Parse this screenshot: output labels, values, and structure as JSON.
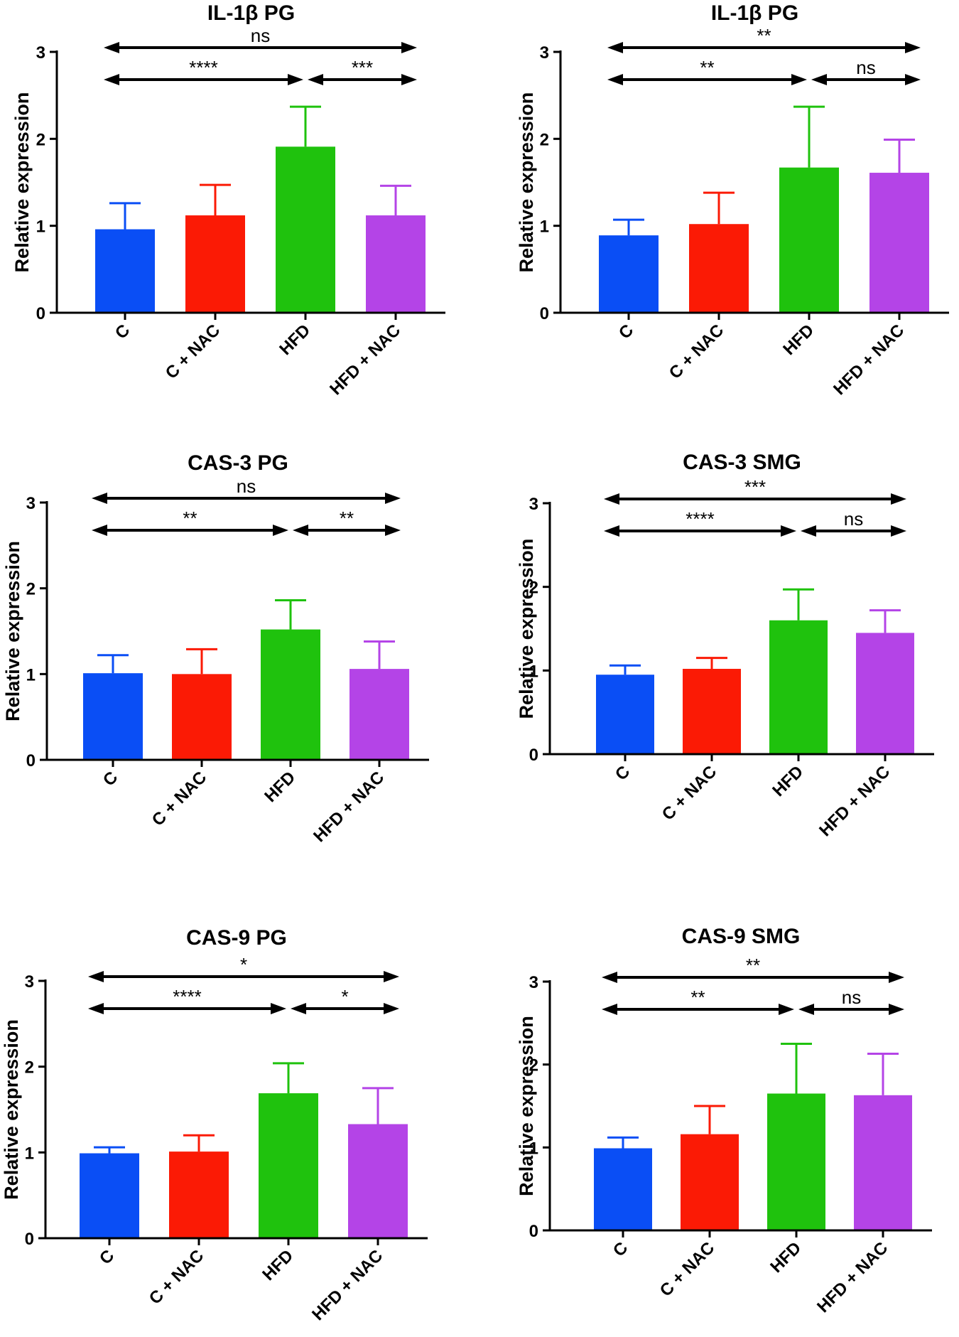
{
  "colors": {
    "C": "#0a4ef5",
    "C + NAC": "#fb1a05",
    "HFD": "#1fc20d",
    "HFD + NAC": "#b444e7",
    "axis": "#000000"
  },
  "chart_data": [
    {
      "type": "bar",
      "title": "IL-1β PG",
      "xlabel": "",
      "ylabel": "Relative expression",
      "ylim": [
        0,
        3
      ],
      "yticks": [
        0,
        1,
        2,
        3
      ],
      "categories": [
        "C",
        "C + NAC",
        "HFD",
        "HFD + NAC"
      ],
      "values": [
        0.96,
        1.12,
        1.91,
        1.12
      ],
      "errors": [
        0.3,
        0.35,
        0.46,
        0.34
      ],
      "comparisons": [
        {
          "from": "C",
          "to": "HFD + NAC",
          "label": "ns",
          "level": "top"
        },
        {
          "from": "C",
          "to": "HFD",
          "label": "****",
          "level": "lower"
        },
        {
          "from": "HFD",
          "to": "HFD + NAC",
          "label": "***",
          "level": "lower"
        }
      ]
    },
    {
      "type": "bar",
      "title": "IL-1β PG",
      "xlabel": "",
      "ylabel": "Relative expression",
      "ylim": [
        0,
        3
      ],
      "yticks": [
        0,
        1,
        2,
        3
      ],
      "categories": [
        "C",
        "C + NAC",
        "HFD",
        "HFD + NAC"
      ],
      "values": [
        0.89,
        1.02,
        1.67,
        1.61
      ],
      "errors": [
        0.18,
        0.36,
        0.7,
        0.38
      ],
      "comparisons": [
        {
          "from": "C",
          "to": "HFD + NAC",
          "label": "**",
          "level": "top"
        },
        {
          "from": "C",
          "to": "HFD",
          "label": "**",
          "level": "lower"
        },
        {
          "from": "HFD",
          "to": "HFD + NAC",
          "label": "ns",
          "level": "lower"
        }
      ]
    },
    {
      "type": "bar",
      "title": "CAS-3 PG",
      "xlabel": "",
      "ylabel": "Relative expression",
      "ylim": [
        0,
        3
      ],
      "yticks": [
        0,
        1,
        2,
        3
      ],
      "categories": [
        "C",
        "C + NAC",
        "HFD",
        "HFD + NAC"
      ],
      "values": [
        1.01,
        1.0,
        1.52,
        1.06
      ],
      "errors": [
        0.21,
        0.29,
        0.34,
        0.32
      ],
      "comparisons": [
        {
          "from": "C",
          "to": "HFD + NAC",
          "label": "ns",
          "level": "top"
        },
        {
          "from": "C",
          "to": "HFD",
          "label": "**",
          "level": "lower"
        },
        {
          "from": "HFD",
          "to": "HFD + NAC",
          "label": "**",
          "level": "lower"
        }
      ]
    },
    {
      "type": "bar",
      "title": "CAS-3 SMG",
      "xlabel": "",
      "ylabel": "Relative expression",
      "ylim": [
        0,
        3
      ],
      "yticks": [
        0,
        1,
        2,
        3
      ],
      "categories": [
        "C",
        "C + NAC",
        "HFD",
        "HFD + NAC"
      ],
      "values": [
        0.95,
        1.02,
        1.6,
        1.45
      ],
      "errors": [
        0.11,
        0.13,
        0.37,
        0.27
      ],
      "comparisons": [
        {
          "from": "C",
          "to": "HFD + NAC",
          "label": "***",
          "level": "top"
        },
        {
          "from": "C",
          "to": "HFD",
          "label": "****",
          "level": "lower"
        },
        {
          "from": "HFD",
          "to": "HFD + NAC",
          "label": "ns",
          "level": "lower"
        }
      ]
    },
    {
      "type": "bar",
      "title": "CAS-9 PG",
      "xlabel": "",
      "ylabel": "Relative expression",
      "ylim": [
        0,
        3
      ],
      "yticks": [
        0,
        1,
        2,
        3
      ],
      "categories": [
        "C",
        "C + NAC",
        "HFD",
        "HFD + NAC"
      ],
      "values": [
        0.99,
        1.01,
        1.69,
        1.33
      ],
      "errors": [
        0.07,
        0.19,
        0.35,
        0.42
      ],
      "comparisons": [
        {
          "from": "C",
          "to": "HFD + NAC",
          "label": "*",
          "level": "top"
        },
        {
          "from": "C",
          "to": "HFD",
          "label": "****",
          "level": "lower"
        },
        {
          "from": "HFD",
          "to": "HFD + NAC",
          "label": "*",
          "level": "lower"
        }
      ]
    },
    {
      "type": "bar",
      "title": "CAS-9 SMG",
      "xlabel": "",
      "ylabel": "Relative expression",
      "ylim": [
        0,
        3
      ],
      "yticks": [
        0,
        1,
        2,
        3
      ],
      "categories": [
        "C",
        "C + NAC",
        "HFD",
        "HFD + NAC"
      ],
      "values": [
        0.99,
        1.16,
        1.65,
        1.63
      ],
      "errors": [
        0.13,
        0.34,
        0.6,
        0.5
      ],
      "comparisons": [
        {
          "from": "C",
          "to": "HFD + NAC",
          "label": "**",
          "level": "top"
        },
        {
          "from": "C",
          "to": "HFD",
          "label": "**",
          "level": "lower"
        },
        {
          "from": "HFD",
          "to": "HFD + NAC",
          "label": "ns",
          "level": "lower"
        }
      ]
    }
  ]
}
